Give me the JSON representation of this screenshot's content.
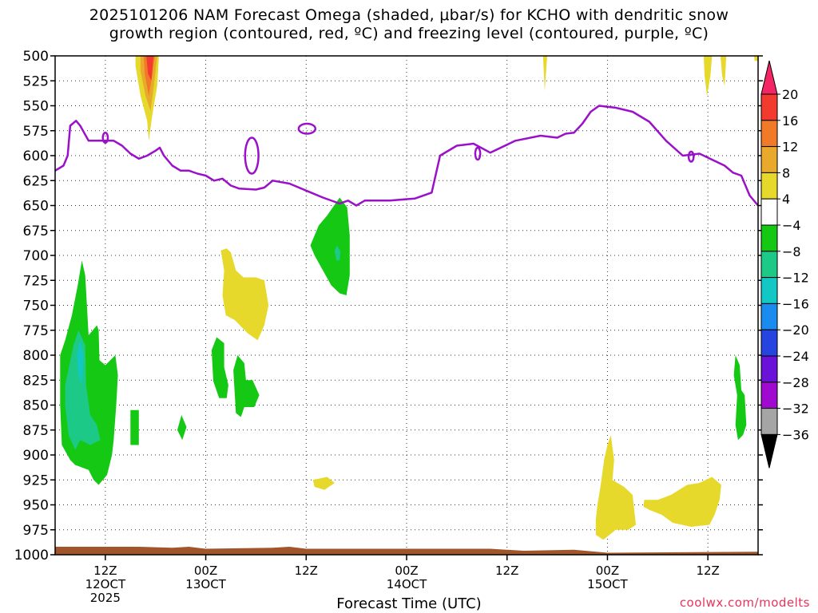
{
  "title_line1": "2025101206 NAM Forecast Omega (shaded, μbar/s) for KCHO with dendritic snow",
  "title_line2": "growth region (contoured, red, ºC) and freezing level (contoured, purple, ºC)",
  "xaxis_title": "Forecast Time (UTC)",
  "credit": "coolwx.com/modelts",
  "chart_data": {
    "type": "time-height cross section",
    "y_axis": {
      "label": "",
      "unit": "hPa",
      "ticks": [
        500,
        525,
        550,
        575,
        600,
        625,
        650,
        675,
        700,
        725,
        750,
        775,
        800,
        825,
        850,
        875,
        900,
        925,
        950,
        975,
        1000
      ],
      "range": [
        1000,
        500
      ],
      "inverted": true
    },
    "x_axis": {
      "ticks": [
        {
          "hours": 6,
          "lines": [
            "12Z",
            "12OCT",
            "2025"
          ]
        },
        {
          "hours": 18,
          "lines": [
            "00Z",
            "13OCT"
          ]
        },
        {
          "hours": 30,
          "lines": [
            "12Z"
          ]
        },
        {
          "hours": 42,
          "lines": [
            "00Z",
            "14OCT"
          ]
        },
        {
          "hours": 54,
          "lines": [
            "12Z"
          ]
        },
        {
          "hours": 66,
          "lines": [
            "00Z",
            "15OCT"
          ]
        },
        {
          "hours": 78,
          "lines": [
            "12Z"
          ]
        }
      ],
      "range_hours": [
        0,
        84
      ]
    },
    "grid": true,
    "colorbar": {
      "levels": [
        20,
        16,
        12,
        8,
        4,
        -4,
        -8,
        -12,
        -16,
        -20,
        -24,
        -28,
        -32,
        -36
      ],
      "colors": [
        "#f42565",
        "#f33a2f",
        "#f07a27",
        "#e8a92c",
        "#e6d92c",
        "#ffffff",
        "#14c814",
        "#1dc986",
        "#12c7c4",
        "#1a8cf0",
        "#2644e0",
        "#6a12d8",
        "#a00ad0",
        "#a5a5a5",
        "#000000"
      ]
    },
    "freezing_level_color": "#9b10c9",
    "freezing_level_hpa": [
      [
        0,
        615
      ],
      [
        1,
        610
      ],
      [
        1.5,
        600
      ],
      [
        1.8,
        570
      ],
      [
        2.5,
        565
      ],
      [
        3,
        570
      ],
      [
        4,
        585
      ],
      [
        5,
        585
      ],
      [
        7,
        585
      ],
      [
        8,
        590
      ],
      [
        9,
        598
      ],
      [
        10,
        603
      ],
      [
        11,
        600
      ],
      [
        12,
        595
      ],
      [
        12.5,
        592
      ],
      [
        13,
        600
      ],
      [
        14,
        610
      ],
      [
        15,
        615
      ],
      [
        16,
        615
      ],
      [
        17,
        618
      ],
      [
        18,
        620
      ],
      [
        19,
        625
      ],
      [
        20,
        623
      ],
      [
        21,
        630
      ],
      [
        22,
        633
      ],
      [
        24,
        634
      ],
      [
        25,
        632
      ],
      [
        26,
        625
      ],
      [
        28,
        628
      ],
      [
        30,
        635
      ],
      [
        32,
        642
      ],
      [
        34,
        648
      ],
      [
        35,
        645
      ],
      [
        36,
        650
      ],
      [
        37,
        645
      ],
      [
        40,
        645
      ],
      [
        43,
        643
      ],
      [
        45,
        637
      ],
      [
        46,
        600
      ],
      [
        48,
        590
      ],
      [
        50,
        588
      ],
      [
        52,
        597
      ],
      [
        55,
        585
      ],
      [
        58,
        580
      ],
      [
        60,
        582
      ],
      [
        61,
        578
      ],
      [
        62,
        577
      ],
      [
        63,
        568
      ],
      [
        64,
        556
      ],
      [
        65,
        550
      ],
      [
        67,
        552
      ],
      [
        69,
        556
      ],
      [
        71,
        566
      ],
      [
        73,
        585
      ],
      [
        75,
        600
      ],
      [
        77,
        598
      ],
      [
        79,
        606
      ],
      [
        80,
        610
      ],
      [
        81,
        617
      ],
      [
        82,
        620
      ],
      [
        83,
        640
      ],
      [
        84,
        650
      ]
    ],
    "snow_growth_region": "none shown",
    "omega_regions": [
      {
        "value_range": [
          4,
          8
        ],
        "time_hours": [
          10,
          12
        ],
        "p_hpa": [
          500,
          585
        ],
        "note": "peak 12-16 core near 500-530"
      },
      {
        "value_range": [
          4,
          8
        ],
        "time_hours": [
          20,
          26
        ],
        "p_hpa": [
          695,
          780
        ]
      },
      {
        "value_range": [
          -8,
          -4
        ],
        "time_hours": [
          31,
          35
        ],
        "p_hpa": [
          635,
          740
        ],
        "note": "core -8 near 700"
      },
      {
        "value_range": [
          -12,
          -4
        ],
        "time_hours": [
          0,
          7.5
        ],
        "p_hpa": [
          700,
          930
        ],
        "note": "core -8 near 800-880"
      },
      {
        "value_range": [
          4,
          8
        ],
        "time_hours": [
          64.5,
          69
        ],
        "p_hpa": [
          880,
          985
        ]
      },
      {
        "value_range": [
          4,
          8
        ],
        "time_hours": [
          70,
          79
        ],
        "p_hpa": [
          935,
          975
        ]
      },
      {
        "value_range": [
          -8,
          -4
        ],
        "time_hours": [
          81,
          82.5
        ],
        "p_hpa": [
          800,
          890
        ]
      }
    ]
  }
}
